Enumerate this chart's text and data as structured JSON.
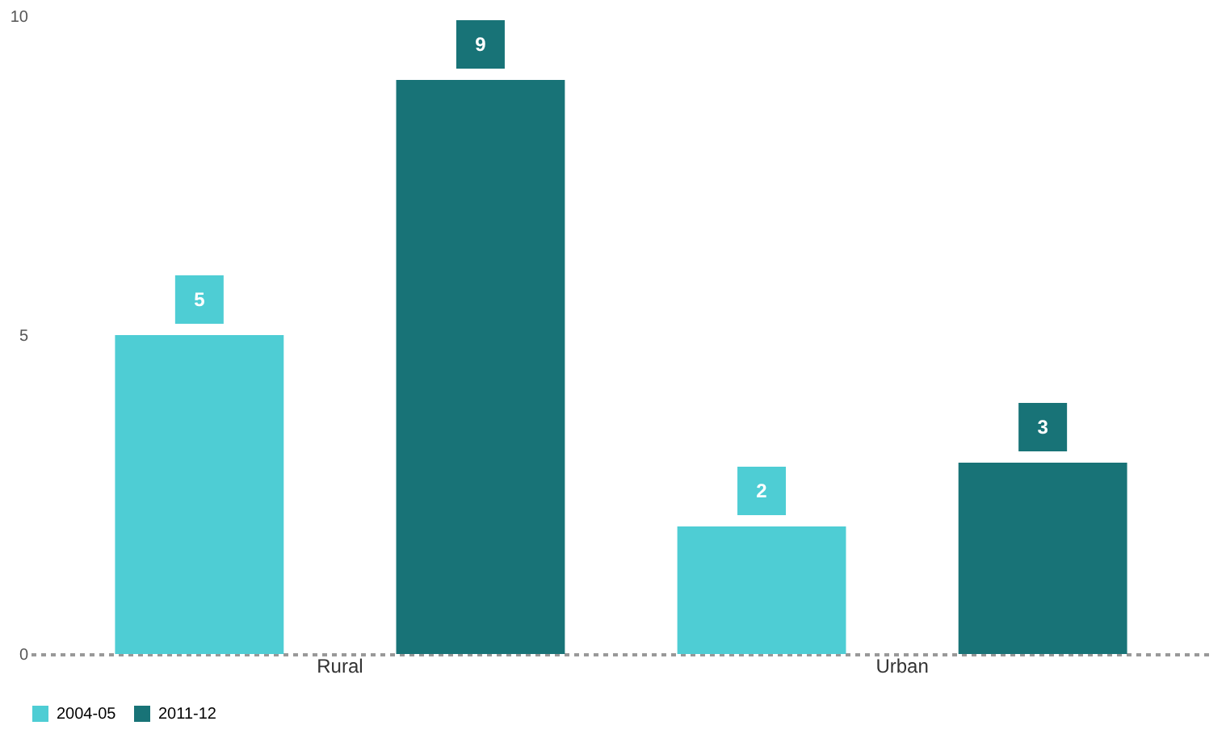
{
  "chart_data": {
    "type": "bar",
    "categories": [
      "Rural",
      "Urban"
    ],
    "series": [
      {
        "name": "2004-05",
        "color": "#4ecdd4",
        "values": [
          5,
          2
        ]
      },
      {
        "name": "2011-12",
        "color": "#187377",
        "values": [
          9,
          3
        ]
      }
    ],
    "ylim": [
      0,
      10
    ],
    "yticks": [
      0,
      5,
      10
    ],
    "grid": false,
    "legend": "bottom",
    "data_labels": true
  }
}
